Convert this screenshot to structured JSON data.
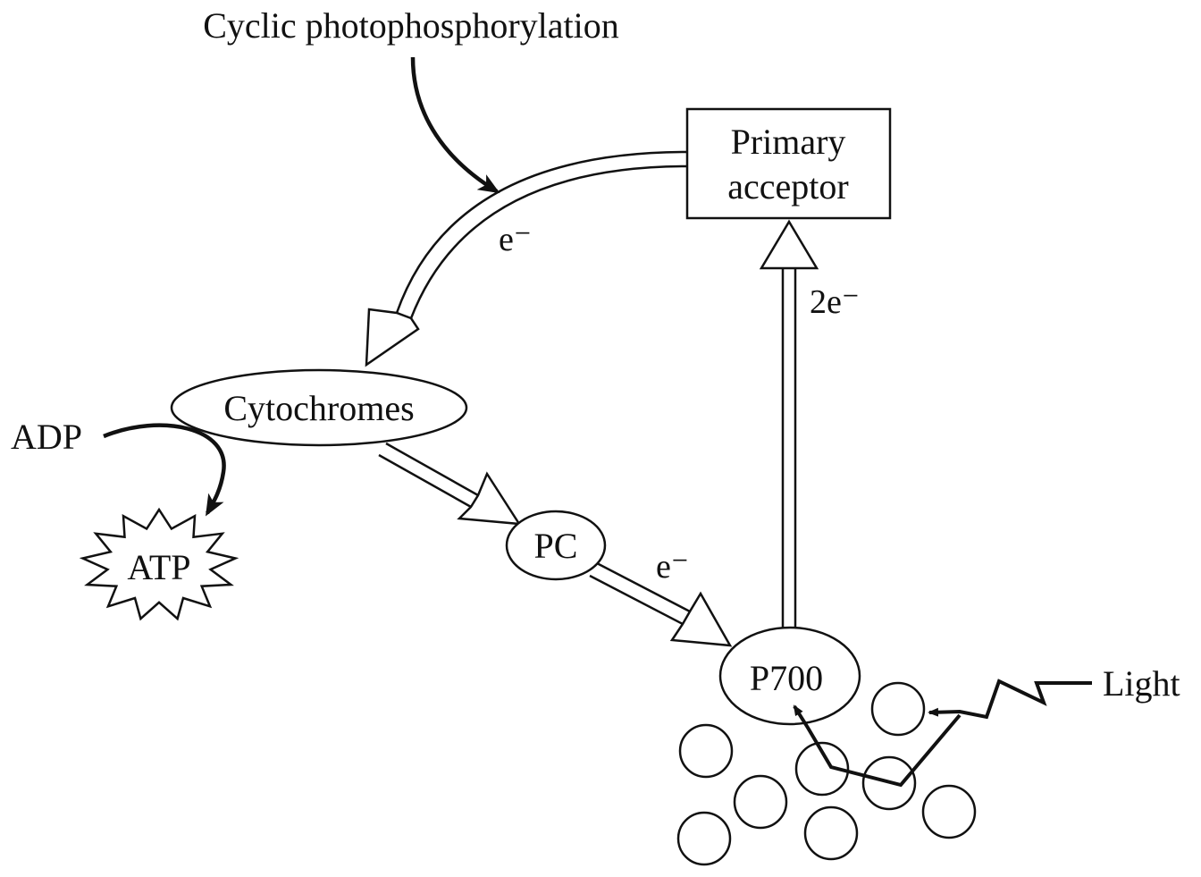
{
  "title": "Cyclic photophosphorylation",
  "nodes": {
    "primary_acceptor": {
      "line1": "Primary",
      "line2": "acceptor"
    },
    "cytochromes": "Cytochromes",
    "pc": "PC",
    "p700": "P700",
    "adp": "ADP",
    "atp": "ATP",
    "light": "Light"
  },
  "electron_labels": {
    "acceptor_to_cytochromes": "e⁻",
    "p700_to_acceptor": "2e⁻",
    "pc_to_p700": "e⁻"
  },
  "colors": {
    "line": "#111111",
    "background": "#ffffff"
  }
}
